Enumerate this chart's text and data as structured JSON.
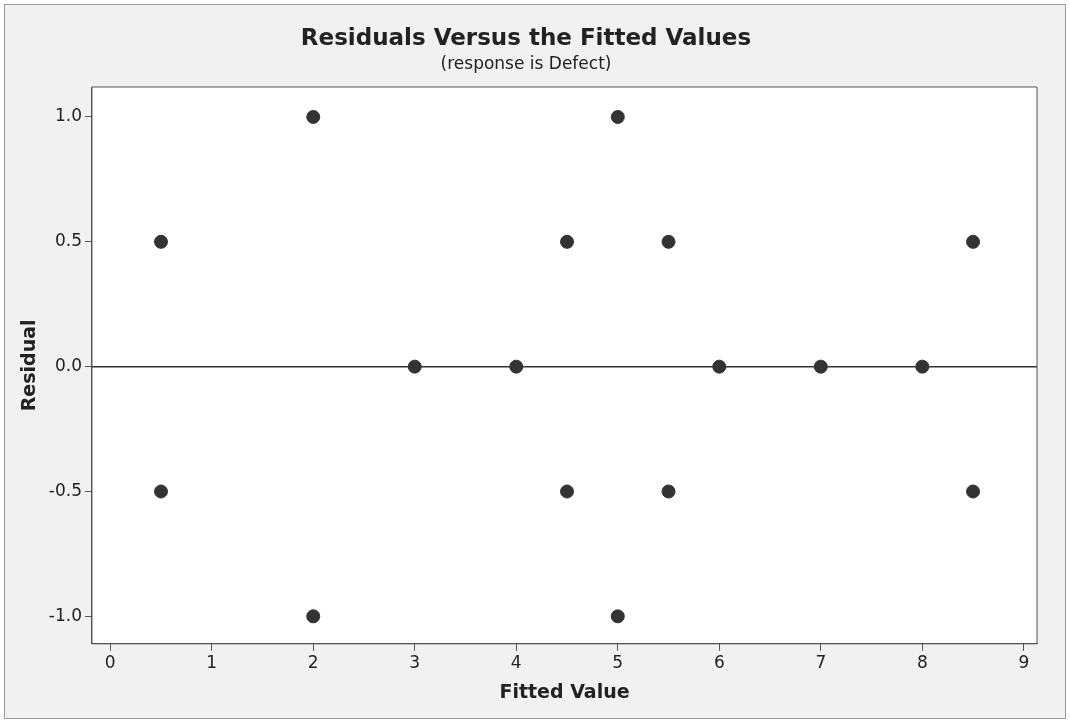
{
  "chart_data": {
    "type": "scatter",
    "title": "Residuals Versus the Fitted Values",
    "subtitle": "(response is Defect)",
    "xlabel": "Fitted Value",
    "ylabel": "Residual",
    "x": [
      0.5,
      0.5,
      2,
      2,
      3,
      4,
      4.5,
      4.5,
      5,
      5,
      5.5,
      5.5,
      6,
      7,
      8,
      8.5,
      8.5
    ],
    "values": [
      0.5,
      -0.5,
      1,
      -1,
      0,
      0,
      0.5,
      -0.5,
      1,
      -1,
      0.5,
      -0.5,
      0,
      0,
      0,
      0.5,
      -0.5
    ],
    "color": "#333333",
    "marker": "circle",
    "grid": false,
    "legend": false,
    "xlim": [
      -0.18,
      9.13
    ],
    "xticks": [
      0,
      1,
      2,
      3,
      4,
      5,
      6,
      7,
      8,
      9
    ],
    "ylim": [
      -1.11,
      1.12
    ],
    "yticks": [
      {
        "value": -1,
        "label": "-1.0"
      },
      {
        "value": -0.5,
        "label": "-0.5"
      },
      {
        "value": 0,
        "label": "0.0"
      },
      {
        "value": 0.5,
        "label": "0.5"
      },
      {
        "value": 1,
        "label": "1.0"
      }
    ],
    "ref_lines": [
      {
        "axis": "y",
        "value": 0,
        "color": "#333333"
      }
    ]
  }
}
